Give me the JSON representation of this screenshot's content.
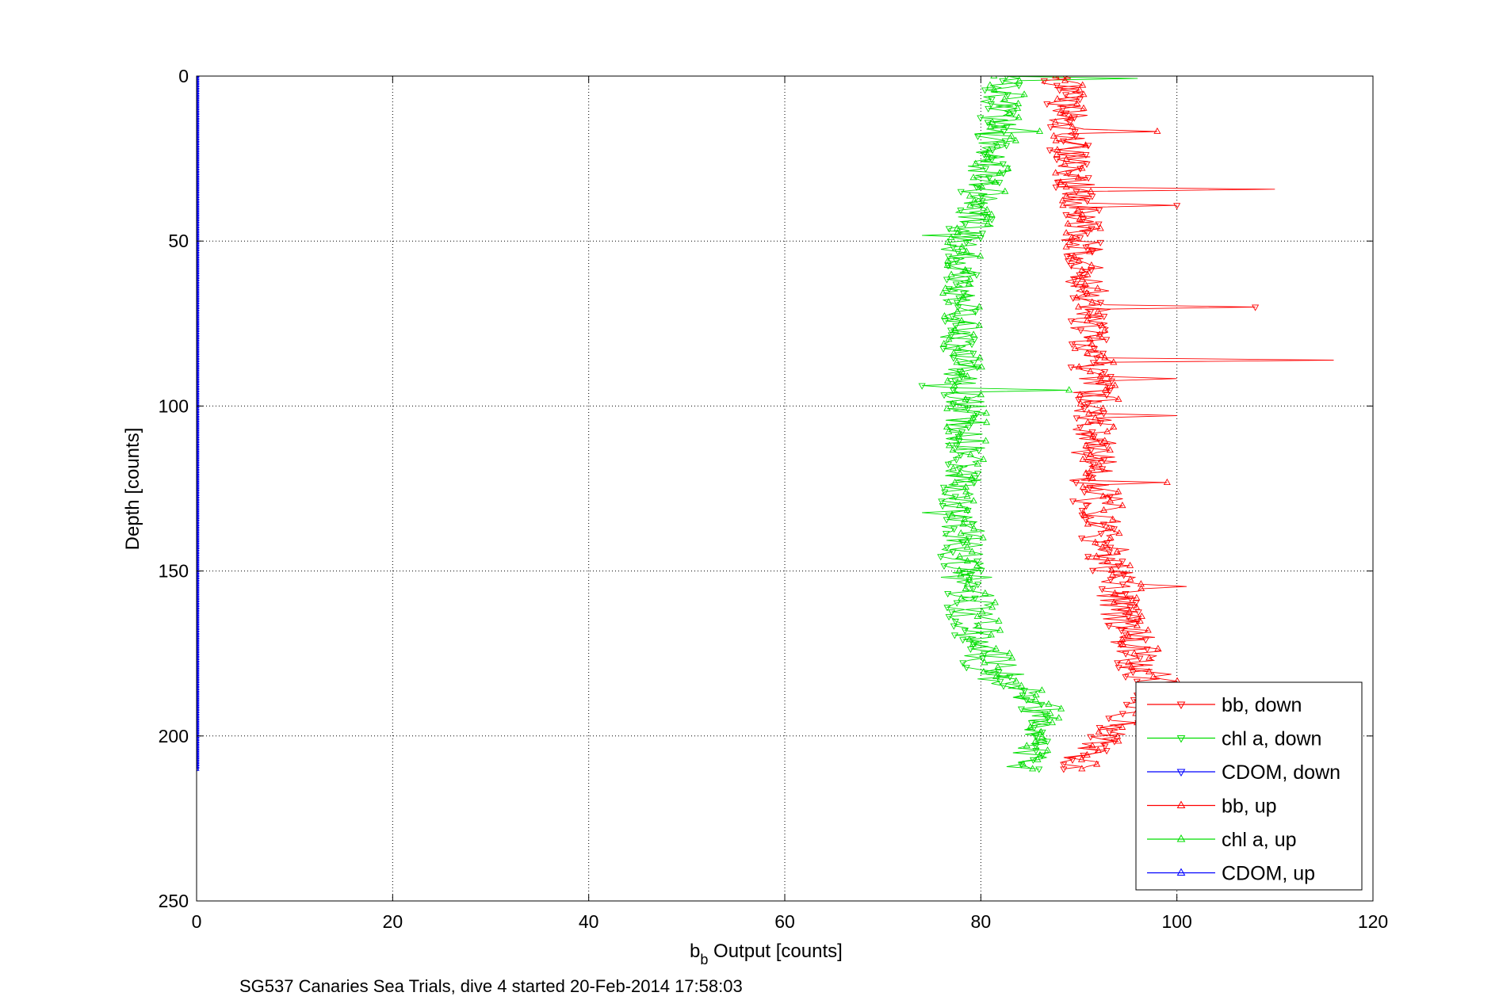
{
  "chart_data": {
    "type": "line",
    "xlabel": "b",
    "xlabel_sub": "b",
    "xlabel_rest": " Output [counts]",
    "ylabel": "Depth [counts]",
    "caption": "SG537 Canaries Sea Trials, dive 4 started 20-Feb-2014 17:58:03",
    "xlim": [
      0,
      120
    ],
    "ylim": [
      0,
      250
    ],
    "y_reversed": true,
    "grid": true,
    "legend_position": "bottom-right",
    "xticks": [
      "0",
      "20",
      "40",
      "60",
      "80",
      "100",
      "120"
    ],
    "yticks": [
      "0",
      "50",
      "100",
      "150",
      "200",
      "250"
    ],
    "depth_step": 0.7,
    "series": [
      {
        "name": "bb, down",
        "color": "#ff0000",
        "marker": "triangle-down",
        "depth_range": [
          0,
          210
        ],
        "profile": [
          [
            0,
            88
          ],
          [
            10,
            88.5
          ],
          [
            20,
            89
          ],
          [
            40,
            90
          ],
          [
            60,
            90.5
          ],
          [
            80,
            91
          ],
          [
            100,
            91.5
          ],
          [
            120,
            91
          ],
          [
            140,
            92
          ],
          [
            160,
            94
          ],
          [
            180,
            96
          ],
          [
            185,
            98
          ],
          [
            207,
            90
          ]
        ]
      },
      {
        "name": "chl a, down",
        "color": "#00dd00",
        "marker": "triangle-down",
        "depth_range": [
          0,
          210
        ],
        "profile": [
          [
            0,
            82
          ],
          [
            10,
            81.5
          ],
          [
            30,
            80.5
          ],
          [
            45,
            79
          ],
          [
            50,
            78
          ],
          [
            70,
            77.5
          ],
          [
            90,
            78
          ],
          [
            110,
            78
          ],
          [
            130,
            77.5
          ],
          [
            150,
            78
          ],
          [
            165,
            78
          ],
          [
            180,
            80
          ],
          [
            190,
            85
          ],
          [
            200,
            86
          ],
          [
            207,
            84
          ]
        ]
      },
      {
        "name": "CDOM, down",
        "color": "#0000ff",
        "marker": "triangle-down",
        "depth_range": [
          0,
          210
        ],
        "profile": [
          [
            0,
            0
          ],
          [
            210,
            0
          ]
        ]
      },
      {
        "name": "bb, up",
        "color": "#ff0000",
        "marker": "triangle-up",
        "depth_range": [
          0,
          210
        ],
        "profile": [
          [
            0,
            88.5
          ],
          [
            10,
            89
          ],
          [
            20,
            89
          ],
          [
            40,
            90
          ],
          [
            60,
            91
          ],
          [
            80,
            91.5
          ],
          [
            100,
            92
          ],
          [
            120,
            92
          ],
          [
            140,
            93
          ],
          [
            160,
            95
          ],
          [
            180,
            97
          ],
          [
            185,
            99
          ],
          [
            207,
            90
          ]
        ]
      },
      {
        "name": "chl a, up",
        "color": "#00dd00",
        "marker": "triangle-up",
        "depth_range": [
          0,
          210
        ],
        "profile": [
          [
            0,
            83
          ],
          [
            10,
            82
          ],
          [
            30,
            81
          ],
          [
            45,
            79.5
          ],
          [
            50,
            78.5
          ],
          [
            70,
            78
          ],
          [
            90,
            78.5
          ],
          [
            110,
            78.5
          ],
          [
            130,
            78
          ],
          [
            150,
            79
          ],
          [
            165,
            80
          ],
          [
            180,
            82
          ],
          [
            190,
            86
          ],
          [
            200,
            86.5
          ],
          [
            207,
            84.5
          ]
        ]
      },
      {
        "name": "CDOM, up",
        "color": "#0000ff",
        "marker": "triangle-up",
        "depth_range": [
          0,
          210
        ],
        "profile": [
          [
            0,
            0
          ],
          [
            210,
            0
          ]
        ]
      }
    ],
    "spikes": [
      {
        "series": 0,
        "depth": 34,
        "value": 110
      },
      {
        "series": 0,
        "depth": 39,
        "value": 100
      },
      {
        "series": 0,
        "depth": 70,
        "value": 108
      },
      {
        "series": 0,
        "depth": 86,
        "value": 116
      },
      {
        "series": 3,
        "depth": 17,
        "value": 98
      },
      {
        "series": 3,
        "depth": 92,
        "value": 100
      },
      {
        "series": 3,
        "depth": 103,
        "value": 100
      },
      {
        "series": 3,
        "depth": 123,
        "value": 99
      },
      {
        "series": 3,
        "depth": 155,
        "value": 101
      },
      {
        "series": 1,
        "depth": 48,
        "value": 74
      },
      {
        "series": 1,
        "depth": 94,
        "value": 74
      },
      {
        "series": 1,
        "depth": 132,
        "value": 74
      },
      {
        "series": 4,
        "depth": 1,
        "value": 96
      },
      {
        "series": 4,
        "depth": 95,
        "value": 89
      },
      {
        "series": 4,
        "depth": 17,
        "value": 86
      }
    ]
  }
}
